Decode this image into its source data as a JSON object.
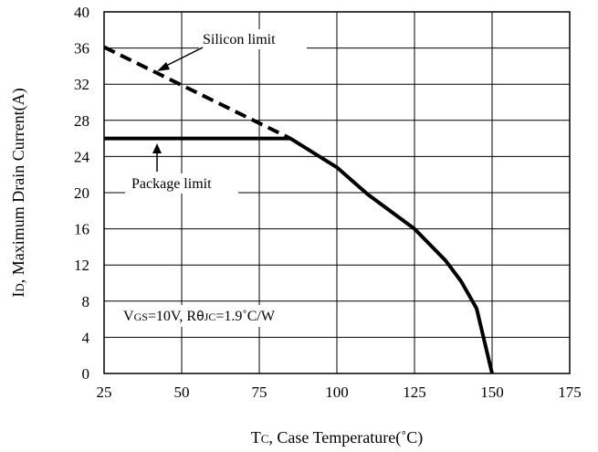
{
  "chart_data": {
    "type": "line",
    "title": "",
    "xlabel": {
      "main": "T",
      "sub": "C",
      "rest": ", Case Temperature(˚C)"
    },
    "ylabel": {
      "main": "I",
      "sub": "D",
      "rest": ", Maximum Drain Current(A)"
    },
    "xlim": [
      25,
      175
    ],
    "ylim": [
      0,
      40
    ],
    "x_ticks": [
      "25",
      "50",
      "75",
      "100",
      "125",
      "150",
      "175"
    ],
    "y_ticks": [
      "0",
      "4",
      "8",
      "12",
      "16",
      "20",
      "24",
      "28",
      "32",
      "36",
      "40"
    ],
    "x_tick_values": [
      25,
      50,
      75,
      100,
      125,
      150,
      175
    ],
    "y_tick_values": [
      0,
      4,
      8,
      12,
      16,
      20,
      24,
      28,
      32,
      36,
      40
    ],
    "grid": true,
    "series": [
      {
        "name": "Silicon limit",
        "style": "dashed",
        "x": [
          25,
          85
        ],
        "y": [
          36.1,
          26
        ]
      },
      {
        "name": "Package limit",
        "style": "solid",
        "x": [
          25,
          85
        ],
        "y": [
          26,
          26
        ]
      },
      {
        "name": "",
        "style": "solid",
        "x": [
          85,
          100,
          110,
          125,
          135,
          140,
          145,
          150
        ],
        "y": [
          26,
          22.8,
          19.8,
          16,
          12.5,
          10.2,
          7.2,
          0
        ]
      }
    ],
    "annotations": {
      "silicon_limit": "Silicon limit",
      "package_limit": "Package limit",
      "conditions": {
        "v": "V",
        "v_sub": "GS",
        "v_val": "=10V, R",
        "theta": "θ",
        "theta_sub": "JC",
        "theta_val": "=1.9˚C/W"
      }
    }
  }
}
